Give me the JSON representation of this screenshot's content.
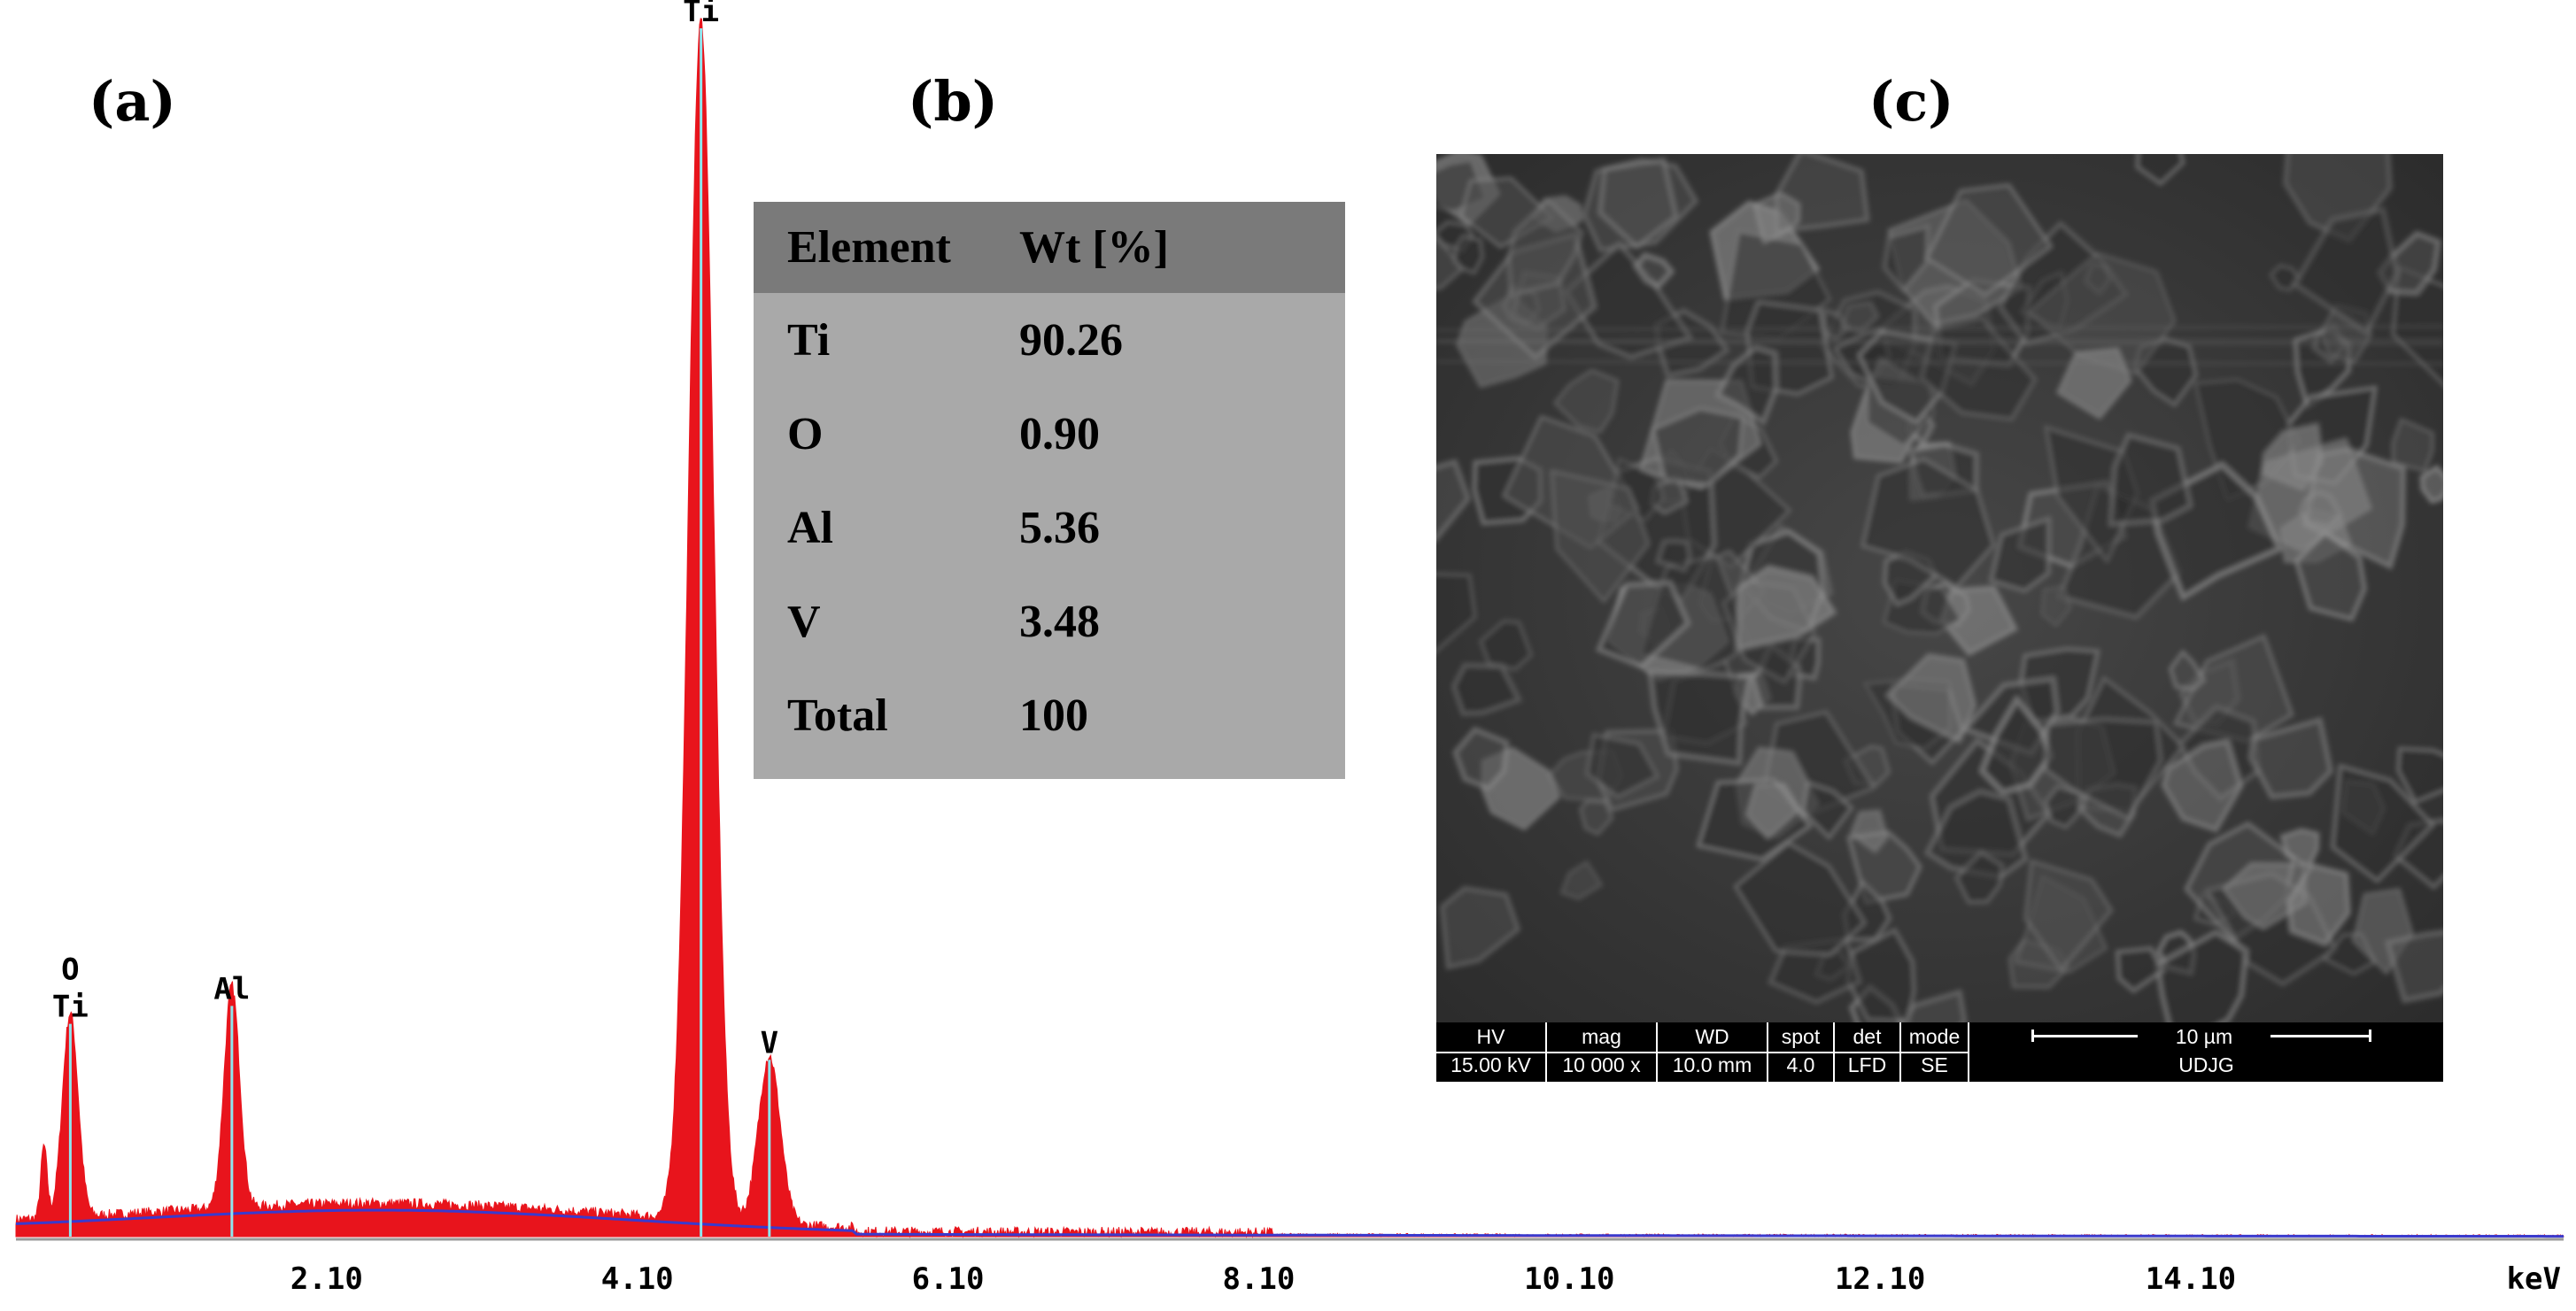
{
  "panels": {
    "a": "(a)",
    "b": "(b)",
    "c": "(c)"
  },
  "chart_data": {
    "type": "line",
    "title": "",
    "xlabel": "keV",
    "ylabel": "",
    "x_ticks": [
      "2.10",
      "4.10",
      "6.10",
      "8.10",
      "10.10",
      "12.10",
      "14.10"
    ],
    "xlim": [
      0.1,
      16.5
    ],
    "ylim": [
      0,
      100
    ],
    "peaks": [
      {
        "label_lines": [
          "O",
          "Ti"
        ],
        "energy": 0.45,
        "height": 17.0,
        "sigma": 0.05
      },
      {
        "label_lines": [
          "Al"
        ],
        "energy": 1.49,
        "height": 18.5,
        "sigma": 0.05
      },
      {
        "label_lines": [
          "Ti"
        ],
        "energy": 4.51,
        "height": 100,
        "sigma": 0.08
      },
      {
        "label_lines": [
          "V"
        ],
        "energy": 4.95,
        "height": 14.0,
        "sigma": 0.07
      }
    ],
    "colors": {
      "fill": "#e8141c",
      "fit": "#3a3acd",
      "marker": "#8fe6ee"
    }
  },
  "table": {
    "headers": [
      "Element",
      "Wt [%]"
    ],
    "rows": [
      [
        "Ti",
        "90.26"
      ],
      [
        "O",
        "0.90"
      ],
      [
        "Al",
        "5.36"
      ],
      [
        "V",
        "3.48"
      ],
      [
        "Total",
        "100"
      ]
    ]
  },
  "sem": {
    "hv_label": "HV",
    "hv_value": "15.00 kV",
    "mag_label": "mag",
    "mag_value": "10 000 x",
    "wd_label": "WD",
    "wd_value": "10.0 mm",
    "spot_label": "spot",
    "spot_value": "4.0",
    "det_label": "det",
    "det_value": "LFD",
    "mode_label": "mode",
    "mode_value": "SE",
    "scale_label": "10 µm",
    "lab_label": "UDJG"
  }
}
